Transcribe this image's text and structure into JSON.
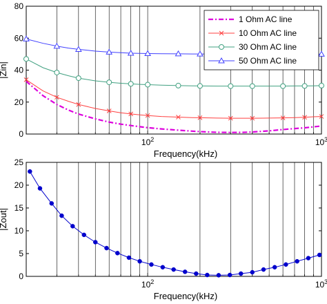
{
  "chart_data": [
    {
      "type": "line",
      "xlabel": "Frequency(kHz)",
      "ylabel": "|Zin|",
      "xscale": "log",
      "xlim": [
        20,
        1000
      ],
      "ylim": [
        0,
        80
      ],
      "yticks": [
        0,
        20,
        40,
        60,
        80
      ],
      "xtick_labels": [
        {
          "base": "10",
          "exp": "2",
          "value": 100
        },
        {
          "base": "10",
          "exp": "3",
          "value": 1000
        }
      ],
      "grid": "x-major-and-minor",
      "legend_position": "top-right",
      "x": [
        20,
        25,
        30,
        35,
        40,
        50,
        60,
        70,
        80,
        90,
        100,
        120,
        150,
        180,
        200,
        250,
        300,
        350,
        400,
        500,
        600,
        700,
        800,
        900,
        1000
      ],
      "series": [
        {
          "name": "1 Ohm AC line",
          "color": "#dd00dd",
          "style": "dash-dot",
          "marker": "none",
          "values": [
            33,
            24,
            18.5,
            15,
            12.5,
            9.5,
            7.5,
            6.2,
            5.3,
            4.6,
            4.0,
            3.2,
            2.4,
            1.8,
            1.5,
            1.1,
            1.0,
            1.05,
            1.3,
            2.0,
            2.8,
            3.4,
            3.9,
            4.5,
            5.0
          ]
        },
        {
          "name": "10 Ohm AC line",
          "color": "#ff4040",
          "style": "solid",
          "marker": "x",
          "values": [
            34,
            27,
            23,
            20.5,
            18.5,
            16,
            14.5,
            13.3,
            12.6,
            12.0,
            11.6,
            11.0,
            10.6,
            10.3,
            10.2,
            10.0,
            9.9,
            9.9,
            9.9,
            10.0,
            10.1,
            10.3,
            10.5,
            10.8,
            11.0
          ]
        },
        {
          "name": "30 Ohm AC line",
          "color": "#40a080",
          "style": "solid",
          "marker": "circle",
          "values": [
            47,
            41.5,
            38.5,
            36.5,
            35,
            33.3,
            32.4,
            31.8,
            31.4,
            31.1,
            30.9,
            30.6,
            30.3,
            30.2,
            30.1,
            30.0,
            30.0,
            30.0,
            30.0,
            30.0,
            30.0,
            30.1,
            30.1,
            30.2,
            30.3
          ]
        },
        {
          "name": "50 Ohm AC line",
          "color": "#4040ff",
          "style": "solid",
          "marker": "triangle",
          "values": [
            59.5,
            56.8,
            55,
            53.8,
            53,
            51.9,
            51.3,
            50.9,
            50.6,
            50.5,
            50.4,
            50.3,
            50.2,
            50.1,
            50.1,
            50.0,
            50.0,
            50.0,
            50.0,
            50.0,
            50.0,
            50.0,
            50.0,
            50.0,
            50.0
          ]
        }
      ]
    },
    {
      "type": "line",
      "xlabel": "Frequency(kHz)",
      "ylabel": "|Zout|",
      "xscale": "log",
      "xlim": [
        20,
        1000
      ],
      "ylim": [
        0,
        25
      ],
      "yticks": [
        0,
        5,
        10,
        15,
        20,
        25
      ],
      "xtick_labels": [
        {
          "base": "10",
          "exp": "2",
          "value": 100
        },
        {
          "base": "10",
          "exp": "3",
          "value": 1000
        }
      ],
      "grid": "x-major-and-minor",
      "series": [
        {
          "color": "#0000cc",
          "style": "solid",
          "marker": "filled-circle",
          "x": [
            21,
            24,
            28,
            32,
            37,
            43,
            50,
            58,
            67,
            78,
            90,
            105,
            122,
            141,
            164,
            190,
            220,
            256,
            297,
            344,
            400,
            464,
            538,
            624,
            724,
            840,
            974
          ],
          "values": [
            23.0,
            19.3,
            16.0,
            13.3,
            11.0,
            9.1,
            7.5,
            6.2,
            5.1,
            4.1,
            3.3,
            2.6,
            2.0,
            1.5,
            1.0,
            0.6,
            0.3,
            0.25,
            0.3,
            0.6,
            0.9,
            1.5,
            2.0,
            2.6,
            3.3,
            4.0,
            4.7
          ]
        }
      ]
    }
  ]
}
